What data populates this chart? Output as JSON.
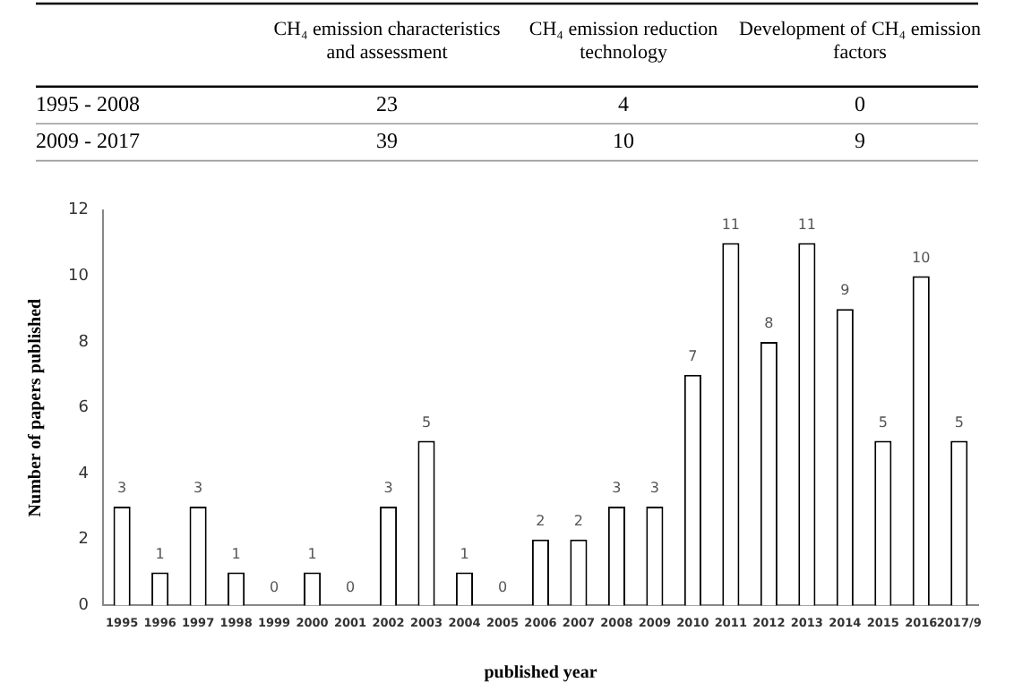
{
  "chart_data": [
    {
      "type": "heatmap",
      "categories": [
        "CH₄ emission characteristics and assessment",
        "CH₄ emission reduction technology",
        "Development of CH₄ emission factors"
      ],
      "y_categories": [
        "1995 - 2008",
        "2009 - 2017"
      ],
      "cells": [
        [
          23,
          4,
          0
        ],
        [
          39,
          10,
          9
        ]
      ],
      "data_labels": true
    },
    {
      "type": "bar",
      "xlabel": "published year",
      "ylabel": "Number of papers published",
      "categories": [
        "1995",
        "1996",
        "1997",
        "1998",
        "1999",
        "2000",
        "2001",
        "2002",
        "2003",
        "2004",
        "2005",
        "2006",
        "2007",
        "2008",
        "2009",
        "2010",
        "2011",
        "2012",
        "2013",
        "2014",
        "2015",
        "2016",
        "2017/9"
      ],
      "values": [
        3,
        1,
        3,
        1,
        0,
        1,
        0,
        3,
        5,
        1,
        0,
        2,
        2,
        3,
        3,
        7,
        11,
        8,
        11,
        9,
        5,
        10,
        5
      ],
      "color": "#ffffff",
      "ylim": [
        0,
        12
      ],
      "yticks": [
        0,
        2,
        4,
        6,
        8,
        10,
        12
      ],
      "grid": false,
      "legend": false,
      "data_labels": true
    }
  ]
}
